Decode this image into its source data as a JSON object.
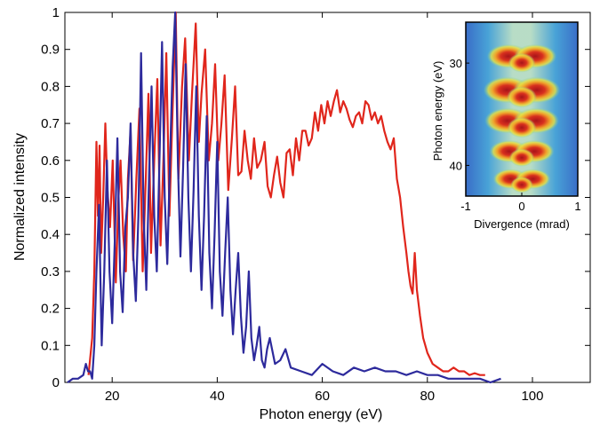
{
  "chart_data": [
    {
      "type": "line",
      "xlabel": "Photon energy (eV)",
      "ylabel": "Normalized intensity",
      "xlim": [
        11,
        111
      ],
      "ylim": [
        0,
        1
      ],
      "grid": false,
      "legend": "none",
      "xticks": [
        20,
        40,
        60,
        80,
        100
      ],
      "yticks": [
        0,
        0.1,
        0.2,
        0.3,
        0.4,
        0.5,
        0.6,
        0.7,
        0.8,
        0.9,
        1
      ],
      "xtick_labels": [
        "20",
        "40",
        "60",
        "80",
        "100"
      ],
      "ytick_labels": [
        "0",
        "0.1",
        "0.2",
        "0.3",
        "0.4",
        "0.5",
        "0.6",
        "0.7",
        "0.8",
        "0.9",
        "1"
      ],
      "series": [
        {
          "color": "#e0261c",
          "x": [
            15.5,
            16.2,
            16.6,
            17.0,
            17.3,
            17.6,
            17.9,
            18.3,
            18.7,
            19.1,
            19.6,
            20.1,
            20.7,
            21.2,
            21.6,
            22.1,
            22.6,
            23.0,
            23.5,
            24.0,
            24.6,
            25.2,
            25.8,
            26.4,
            26.9,
            27.4,
            28.0,
            28.6,
            29.2,
            29.8,
            30.3,
            30.9,
            31.5,
            32.1,
            32.6,
            33.3,
            33.9,
            34.6,
            35.2,
            35.9,
            36.5,
            37.0,
            37.7,
            38.4,
            39.0,
            39.6,
            40.2,
            40.8,
            41.4,
            42.1,
            42.8,
            43.4,
            44.0,
            44.6,
            45.2,
            45.8,
            46.4,
            47.0,
            47.6,
            48.3,
            49.0,
            49.6,
            50.2,
            50.8,
            51.4,
            52.0,
            52.6,
            53.2,
            53.8,
            54.4,
            55.0,
            55.6,
            56.2,
            56.8,
            57.4,
            58.0,
            58.6,
            59.2,
            59.8,
            60.4,
            61.0,
            61.6,
            62.2,
            62.8,
            63.4,
            64.0,
            64.6,
            65.2,
            65.8,
            66.4,
            67.0,
            67.6,
            68.2,
            68.8,
            69.4,
            70.0,
            70.6,
            71.2,
            71.8,
            72.4,
            73.0,
            73.6,
            74.2,
            74.8,
            75.4,
            76.0,
            76.4,
            76.8,
            77.2,
            77.6,
            78.0,
            78.6,
            79.2,
            80.0,
            81.0,
            82.0,
            83.0,
            84.0,
            85.0,
            86.0,
            87.0,
            88.0,
            89.0,
            90.0,
            91.0
          ],
          "y": [
            0.02,
            0.12,
            0.3,
            0.65,
            0.45,
            0.64,
            0.35,
            0.5,
            0.7,
            0.52,
            0.42,
            0.6,
            0.27,
            0.5,
            0.6,
            0.4,
            0.3,
            0.55,
            0.68,
            0.33,
            0.55,
            0.74,
            0.3,
            0.55,
            0.78,
            0.35,
            0.6,
            0.82,
            0.37,
            0.62,
            0.89,
            0.45,
            0.74,
            1.0,
            0.55,
            0.8,
            0.93,
            0.6,
            0.78,
            0.97,
            0.65,
            0.78,
            0.9,
            0.6,
            0.7,
            0.86,
            0.6,
            0.7,
            0.83,
            0.52,
            0.66,
            0.8,
            0.56,
            0.57,
            0.68,
            0.6,
            0.55,
            0.66,
            0.58,
            0.6,
            0.65,
            0.53,
            0.5,
            0.56,
            0.61,
            0.54,
            0.5,
            0.62,
            0.63,
            0.56,
            0.66,
            0.6,
            0.68,
            0.68,
            0.64,
            0.66,
            0.73,
            0.68,
            0.75,
            0.7,
            0.76,
            0.72,
            0.76,
            0.79,
            0.73,
            0.76,
            0.74,
            0.71,
            0.69,
            0.72,
            0.73,
            0.7,
            0.76,
            0.75,
            0.71,
            0.73,
            0.7,
            0.72,
            0.68,
            0.65,
            0.63,
            0.66,
            0.55,
            0.5,
            0.42,
            0.35,
            0.3,
            0.26,
            0.24,
            0.35,
            0.25,
            0.18,
            0.12,
            0.08,
            0.05,
            0.04,
            0.03,
            0.03,
            0.04,
            0.03,
            0.03,
            0.02,
            0.025,
            0.02,
            0.02
          ]
        },
        {
          "color": "#2d2a9c",
          "x": [
            11.5,
            12.5,
            13.5,
            14.5,
            15.0,
            15.4,
            15.8,
            16.2,
            16.6,
            17.0,
            17.5,
            18.0,
            18.5,
            19.0,
            19.5,
            20.0,
            20.5,
            21.0,
            21.5,
            22.0,
            22.5,
            23.0,
            23.5,
            24.0,
            24.5,
            25.0,
            25.5,
            26.0,
            26.5,
            27.0,
            27.5,
            28.0,
            28.5,
            29.0,
            29.5,
            30.0,
            30.5,
            31.0,
            31.5,
            32.0,
            32.5,
            33.0,
            33.5,
            34.0,
            34.5,
            35.0,
            35.5,
            36.0,
            36.5,
            37.0,
            37.5,
            38.0,
            38.5,
            39.0,
            39.5,
            40.0,
            40.5,
            41.0,
            41.5,
            42.0,
            42.5,
            43.0,
            43.5,
            44.0,
            44.5,
            45.0,
            45.5,
            46.0,
            46.5,
            47.0,
            47.5,
            48.0,
            48.5,
            49.0,
            49.5,
            50.0,
            51.0,
            52.0,
            53.0,
            54.0,
            56.0,
            58.0,
            60.0,
            62.0,
            64.0,
            66.0,
            68.0,
            70.0,
            72.0,
            74.0,
            76.0,
            78.0,
            80.0,
            82.0,
            84.0,
            86.0,
            88.0,
            90.0,
            92.0,
            94.0
          ],
          "y": [
            0.0,
            0.01,
            0.01,
            0.02,
            0.05,
            0.03,
            0.03,
            0.01,
            0.1,
            0.3,
            0.48,
            0.1,
            0.3,
            0.6,
            0.3,
            0.16,
            0.38,
            0.66,
            0.3,
            0.19,
            0.42,
            0.5,
            0.7,
            0.35,
            0.22,
            0.45,
            0.89,
            0.45,
            0.25,
            0.55,
            0.8,
            0.45,
            0.3,
            0.6,
            0.92,
            0.5,
            0.32,
            0.6,
            0.85,
            1.0,
            0.6,
            0.34,
            0.58,
            0.86,
            0.5,
            0.3,
            0.52,
            0.8,
            0.45,
            0.25,
            0.45,
            0.72,
            0.35,
            0.2,
            0.4,
            0.65,
            0.3,
            0.18,
            0.35,
            0.5,
            0.25,
            0.13,
            0.25,
            0.35,
            0.18,
            0.08,
            0.15,
            0.3,
            0.12,
            0.06,
            0.1,
            0.15,
            0.06,
            0.04,
            0.09,
            0.12,
            0.05,
            0.06,
            0.09,
            0.04,
            0.03,
            0.02,
            0.05,
            0.03,
            0.02,
            0.04,
            0.03,
            0.04,
            0.03,
            0.03,
            0.02,
            0.03,
            0.02,
            0.02,
            0.01,
            0.01,
            0.01,
            0.01,
            0.0,
            0.01
          ]
        }
      ]
    },
    {
      "type": "heatmap",
      "xlabel": "Divergence (mrad)",
      "ylabel": "Photon energy (eV)",
      "xlim": [
        -1,
        1
      ],
      "ylim": [
        26,
        43
      ],
      "xticks": [
        -1,
        0,
        1
      ],
      "yticks": [
        30,
        40
      ],
      "xtick_labels": [
        "-1",
        "0",
        "1"
      ],
      "ytick_labels": [
        "30",
        "40"
      ],
      "harmonics": [
        {
          "energy": 29.5,
          "intensity": 0.85
        },
        {
          "energy": 32.8,
          "intensity": 1.0
        },
        {
          "energy": 35.8,
          "intensity": 0.95
        },
        {
          "energy": 38.8,
          "intensity": 0.75
        },
        {
          "energy": 41.5,
          "intensity": 0.6
        }
      ],
      "colors": {
        "background": "#3a7bd0",
        "stripe": "#bfe3c6",
        "peak": "#c8281e",
        "ring": "#f2d23a"
      }
    }
  ]
}
